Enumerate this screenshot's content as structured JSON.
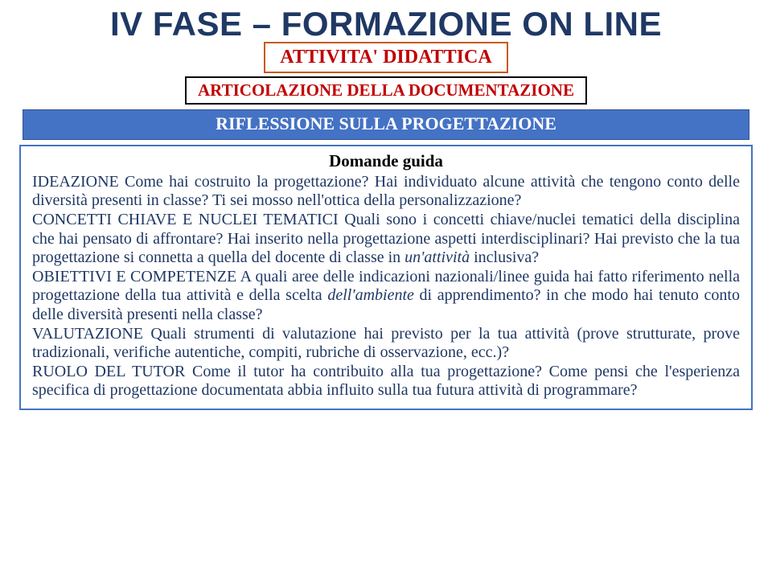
{
  "title": "IV FASE – FORMAZIONE ON LINE",
  "badge1": "ATTIVITA' DIDATTICA",
  "badge2": "ARTICOLAZIONE DELLA DOCUMENTAZIONE",
  "bar": "RIFLESSIONE SULLA PROGETTAZIONE",
  "guide": "Domande guida",
  "colors": {
    "title": "#1f3864",
    "badge_text": "#c00000",
    "badge1_border": "#c55a11",
    "badge2_border": "#000000",
    "bar_bg": "#4472c4",
    "bar_text": "#ffffff",
    "box_border": "#4472c4",
    "body_text": "#1f3864",
    "guide_text": "#000000"
  },
  "p1_kw": "IDEAZIONE",
  "p1": "   Come hai costruito la progettazione? Hai individuato alcune attività che tengono conto delle diversità presenti in classe? Ti sei mosso nell'ottica della personalizzazione?",
  "p2_kw": "CONCETTI CHIAVE E NUCLEI TEMATICI",
  "p2a": "   Quali sono i concetti chiave/nuclei tematici della disciplina che hai pensato di affrontare? Hai inserito nella progettazione aspetti interdisciplinari? Hai previsto che la tua progettazione si connetta a quella del docente di classe in ",
  "p2i": "un'attività",
  "p2b": " inclusiva?",
  "p3_kw": "OBIETTIVI E COMPETENZE",
  "p3a": "      A quali aree delle indicazioni nazionali/linee guida hai fatto riferimento nella  progettazione della tua attività e della scelta ",
  "p3i": "dell'ambiente",
  "p3b": " di apprendimento? in che modo hai tenuto conto delle diversità presenti nella classe?",
  "p4_kw": "VALUTAZIONE",
  "p4": " Quali strumenti di valutazione hai previsto per la tua attività (prove strutturate, prove tradizionali, verifiche autentiche, compiti, rubriche di osservazione, ecc.)?",
  "p5_kw": "RUOLO DEL TUTOR",
  "p5": "    Come il tutor ha contribuito alla tua progettazione? Come pensi che l'esperienza specifica di progettazione documentata abbia influito sulla tua futura attività di programmare?"
}
